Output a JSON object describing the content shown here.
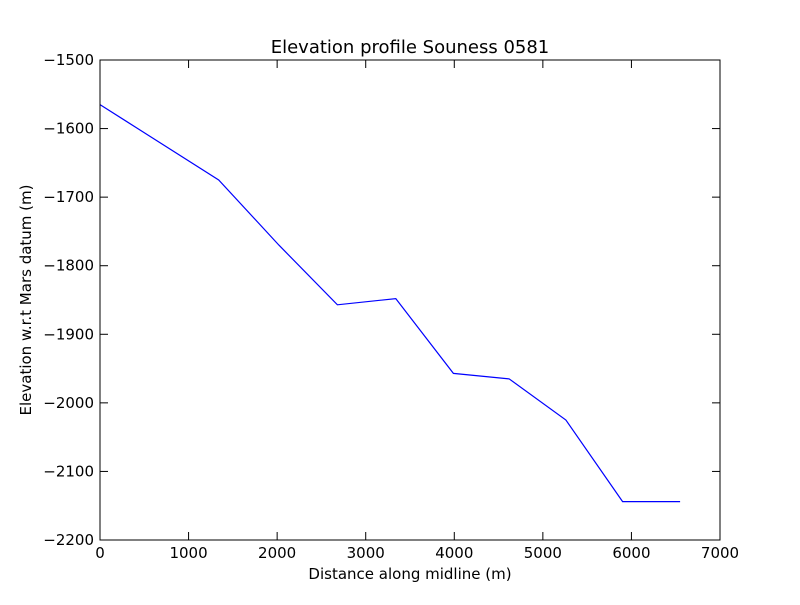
{
  "chart_data": {
    "type": "line",
    "title": "Elevation profile Souness 0581",
    "xlabel": "Distance along midline (m)",
    "ylabel": "Elevation w.r.t Mars datum (m)",
    "xlim": [
      0,
      7000
    ],
    "ylim": [
      -2200,
      -1500
    ],
    "xticks": [
      0,
      1000,
      2000,
      3000,
      4000,
      5000,
      6000,
      7000
    ],
    "yticks": [
      -1500,
      -1600,
      -1700,
      -1800,
      -1900,
      -2000,
      -2100,
      -2200
    ],
    "grid": false,
    "series": [
      {
        "color": "#0000ff",
        "x": [
          0,
          1340,
          2020,
          2680,
          3340,
          3990,
          4620,
          5260,
          5900,
          6550
        ],
        "y": [
          -1565,
          -1675,
          -1770,
          -1857,
          -1848,
          -1957,
          -1965,
          -2025,
          -2144,
          -2144
        ]
      }
    ]
  }
}
